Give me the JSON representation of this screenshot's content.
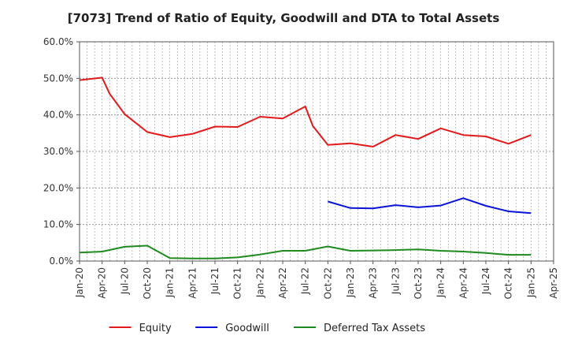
{
  "chart_data": {
    "type": "line",
    "title": "[7073]  Trend of Ratio of Equity, Goodwill and DTA to Total Assets",
    "xlabel": "",
    "ylabel": "",
    "ylim": [
      0,
      0.6
    ],
    "yticks": [
      0,
      0.1,
      0.2,
      0.3,
      0.4,
      0.5,
      0.6
    ],
    "ytick_labels": [
      "0.0%",
      "10.0%",
      "20.0%",
      "30.0%",
      "40.0%",
      "50.0%",
      "60.0%"
    ],
    "x_tick_labels": [
      "Jan-20",
      "Apr-20",
      "Jul-20",
      "Oct-20",
      "Jan-21",
      "Apr-21",
      "Jul-21",
      "Oct-21",
      "Jan-22",
      "Apr-22",
      "Jul-22",
      "Oct-22",
      "Jan-23",
      "Apr-23",
      "Jul-23",
      "Oct-23",
      "Jan-24",
      "Apr-24",
      "Jul-24",
      "Oct-24",
      "Jan-25",
      "Apr-25"
    ],
    "grid": true,
    "legend_position": "bottom",
    "series": [
      {
        "name": "Equity",
        "color": "#e31a1c",
        "points": [
          [
            "Jan-20",
            0.495
          ],
          [
            "Apr-20",
            0.502
          ],
          [
            "May-20",
            0.458
          ],
          [
            "Jul-20",
            0.402
          ],
          [
            "Oct-20",
            0.353
          ],
          [
            "Jan-21",
            0.339
          ],
          [
            "Apr-21",
            0.348
          ],
          [
            "Jul-21",
            0.368
          ],
          [
            "Oct-21",
            0.367
          ],
          [
            "Jan-22",
            0.395
          ],
          [
            "Apr-22",
            0.39
          ],
          [
            "Jul-22",
            0.423
          ],
          [
            "Aug-22",
            0.37
          ],
          [
            "Oct-22",
            0.318
          ],
          [
            "Jan-23",
            0.322
          ],
          [
            "Apr-23",
            0.313
          ],
          [
            "Jul-23",
            0.345
          ],
          [
            "Oct-23",
            0.334
          ],
          [
            "Jan-24",
            0.363
          ],
          [
            "Apr-24",
            0.345
          ],
          [
            "Jul-24",
            0.341
          ],
          [
            "Oct-24",
            0.321
          ],
          [
            "Jan-25",
            0.345
          ]
        ]
      },
      {
        "name": "Goodwill",
        "color": "#0a14d6",
        "points": [
          [
            "Oct-22",
            0.163
          ],
          [
            "Jan-23",
            0.145
          ],
          [
            "Apr-23",
            0.144
          ],
          [
            "Jul-23",
            0.153
          ],
          [
            "Oct-23",
            0.147
          ],
          [
            "Jan-24",
            0.152
          ],
          [
            "Apr-24",
            0.172
          ],
          [
            "Jul-24",
            0.151
          ],
          [
            "Oct-24",
            0.136
          ],
          [
            "Jan-25",
            0.131
          ]
        ]
      },
      {
        "name": "Deferred Tax Assets",
        "color": "#1f8a1f",
        "points": [
          [
            "Jan-20",
            0.023
          ],
          [
            "Apr-20",
            0.026
          ],
          [
            "Jul-20",
            0.039
          ],
          [
            "Oct-20",
            0.042
          ],
          [
            "Jan-21",
            0.008
          ],
          [
            "Apr-21",
            0.007
          ],
          [
            "Jul-21",
            0.007
          ],
          [
            "Oct-21",
            0.01
          ],
          [
            "Jan-22",
            0.018
          ],
          [
            "Apr-22",
            0.028
          ],
          [
            "Jul-22",
            0.028
          ],
          [
            "Oct-22",
            0.04
          ],
          [
            "Jan-23",
            0.028
          ],
          [
            "Apr-23",
            0.029
          ],
          [
            "Jul-23",
            0.03
          ],
          [
            "Oct-23",
            0.032
          ],
          [
            "Jan-24",
            0.028
          ],
          [
            "Apr-24",
            0.026
          ],
          [
            "Jul-24",
            0.022
          ],
          [
            "Oct-24",
            0.017
          ],
          [
            "Jan-25",
            0.017
          ]
        ]
      }
    ]
  }
}
